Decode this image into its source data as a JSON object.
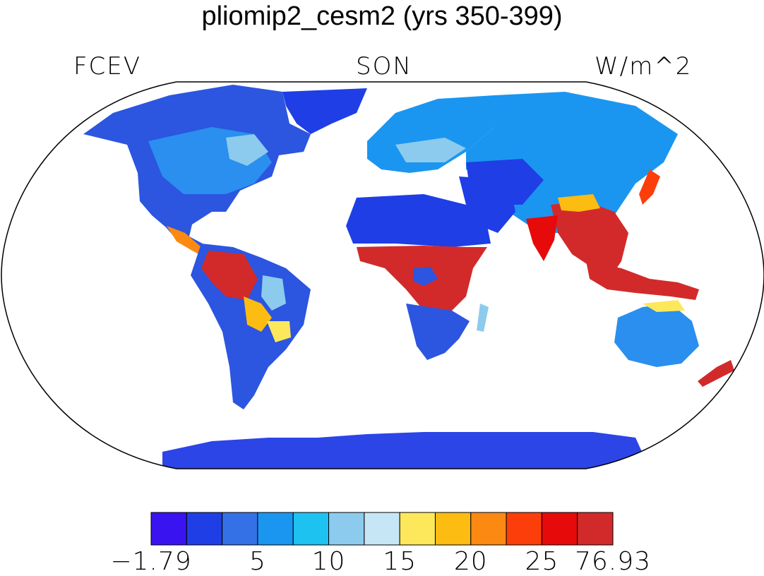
{
  "title": "pliomip2_cesm2 (yrs 350-399)",
  "left_label": "FCEV",
  "center_label": "SON",
  "right_label": "W/m^2",
  "colorbar": {
    "colors": [
      "#3a14f0",
      "#1f3ee6",
      "#3470e6",
      "#1a96f0",
      "#1ec2f0",
      "#8ccbee",
      "#c6e6f6",
      "#fce85a",
      "#fcbc12",
      "#fc8a12",
      "#fc3e0a",
      "#e60a0a",
      "#d22a2a"
    ],
    "labels": [
      {
        "text": "−1.79",
        "boundary": 0
      },
      {
        "text": "5",
        "boundary": 3
      },
      {
        "text": "10",
        "boundary": 5
      },
      {
        "text": "15",
        "boundary": 7
      },
      {
        "text": "20",
        "boundary": 9
      },
      {
        "text": "25",
        "boundary": 11
      },
      {
        "text": "76.93",
        "boundary": 13
      }
    ]
  }
}
